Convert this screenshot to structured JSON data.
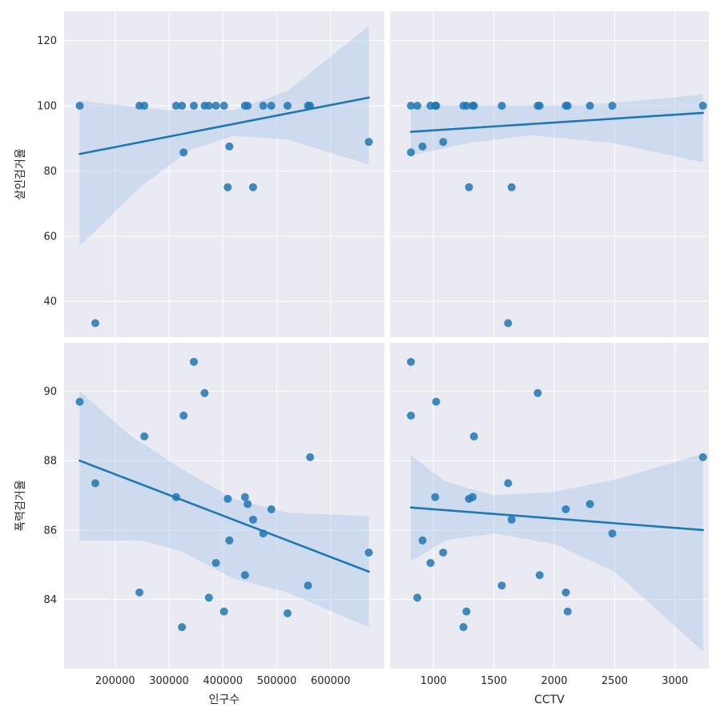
{
  "chart_data": [
    {
      "type": "scatter",
      "row": 0,
      "col": 0,
      "xlabel": "",
      "ylabel": "살인검거율",
      "xlim": [
        105000,
        700000
      ],
      "ylim": [
        29,
        129
      ],
      "yticks": [
        40,
        60,
        80,
        100,
        120
      ],
      "xticks": [],
      "points": [
        [
          134000,
          100
        ],
        [
          163000,
          33.3
        ],
        [
          245000,
          100
        ],
        [
          254000,
          100
        ],
        [
          313000,
          100
        ],
        [
          324000,
          100
        ],
        [
          327000,
          85.7
        ],
        [
          346000,
          100
        ],
        [
          366000,
          100
        ],
        [
          374000,
          100
        ],
        [
          387000,
          100
        ],
        [
          402000,
          100
        ],
        [
          409000,
          75
        ],
        [
          412000,
          87.5
        ],
        [
          441000,
          100
        ],
        [
          446000,
          100
        ],
        [
          456000,
          75
        ],
        [
          475000,
          100
        ],
        [
          490000,
          100
        ],
        [
          520000,
          100
        ],
        [
          558000,
          100
        ],
        [
          562000,
          100
        ],
        [
          671000,
          88.9
        ]
      ],
      "fit": [
        [
          134000,
          85.2
        ],
        [
          671000,
          102.5
        ]
      ],
      "band_upper": [
        [
          134000,
          101.5
        ],
        [
          300000,
          98.6
        ],
        [
          420000,
          98.6
        ],
        [
          520000,
          104.5
        ],
        [
          671000,
          124.5
        ]
      ],
      "band_lower": [
        [
          134000,
          57.0
        ],
        [
          250000,
          75.5
        ],
        [
          340000,
          86.5
        ],
        [
          420000,
          90.8
        ],
        [
          520000,
          89.6
        ],
        [
          671000,
          82.0
        ]
      ]
    },
    {
      "type": "scatter",
      "row": 0,
      "col": 1,
      "xlabel": "",
      "ylabel": "",
      "xlim": [
        640,
        3280
      ],
      "ylim": [
        29,
        129
      ],
      "yticks": [],
      "xticks": [],
      "points": [
        [
          813,
          100
        ],
        [
          813,
          85.7
        ],
        [
          866,
          100
        ],
        [
          909,
          87.5
        ],
        [
          975,
          100
        ],
        [
          1014,
          100
        ],
        [
          1022,
          100
        ],
        [
          1080,
          88.9
        ],
        [
          1248,
          100
        ],
        [
          1273,
          100
        ],
        [
          1294,
          75
        ],
        [
          1324,
          100
        ],
        [
          1335,
          100
        ],
        [
          1566,
          100
        ],
        [
          1618,
          33.3
        ],
        [
          1647,
          75
        ],
        [
          1863,
          100
        ],
        [
          1879,
          100
        ],
        [
          2096,
          100
        ],
        [
          2111,
          100
        ],
        [
          2296,
          100
        ],
        [
          2481,
          100
        ],
        [
          3232,
          100
        ]
      ],
      "fit": [
        [
          813,
          92.0
        ],
        [
          3232,
          97.8
        ]
      ],
      "band_upper": [
        [
          813,
          100.2
        ],
        [
          1500,
          100.2
        ],
        [
          2200,
          100.2
        ],
        [
          2700,
          101.5
        ],
        [
          3232,
          103.5
        ]
      ],
      "band_lower": [
        [
          813,
          84.8
        ],
        [
          1300,
          88.6
        ],
        [
          1800,
          91.0
        ],
        [
          2500,
          88.5
        ],
        [
          3232,
          82.6
        ]
      ]
    },
    {
      "type": "scatter",
      "row": 1,
      "col": 0,
      "xlabel": "인구수",
      "ylabel": "폭력검거율",
      "xlim": [
        105000,
        700000
      ],
      "ylim": [
        82.0,
        91.4
      ],
      "xticks": [
        200000,
        300000,
        400000,
        500000,
        600000
      ],
      "yticks": [
        84,
        86,
        88,
        90
      ],
      "points": [
        [
          134000,
          89.7
        ],
        [
          163000,
          87.35
        ],
        [
          245000,
          84.2
        ],
        [
          254000,
          88.7
        ],
        [
          313000,
          86.95
        ],
        [
          324000,
          83.2
        ],
        [
          327000,
          89.3
        ],
        [
          346000,
          90.85
        ],
        [
          366000,
          89.95
        ],
        [
          374000,
          84.05
        ],
        [
          387000,
          85.05
        ],
        [
          402000,
          83.65
        ],
        [
          409000,
          86.9
        ],
        [
          412000,
          85.7
        ],
        [
          441000,
          86.95
        ],
        [
          441000,
          84.7
        ],
        [
          446000,
          86.75
        ],
        [
          456000,
          86.3
        ],
        [
          475000,
          85.9
        ],
        [
          490000,
          86.6
        ],
        [
          520000,
          83.6
        ],
        [
          558000,
          84.4
        ],
        [
          562000,
          88.1
        ],
        [
          671000,
          85.35
        ]
      ],
      "fit": [
        [
          134000,
          88.0
        ],
        [
          671000,
          84.8
        ]
      ],
      "band_upper": [
        [
          134000,
          90.0
        ],
        [
          230000,
          88.7
        ],
        [
          330000,
          87.7
        ],
        [
          420000,
          86.9
        ],
        [
          520000,
          86.5
        ],
        [
          671000,
          86.4
        ]
      ],
      "band_lower": [
        [
          134000,
          85.7
        ],
        [
          250000,
          85.7
        ],
        [
          320000,
          85.4
        ],
        [
          420000,
          84.6
        ],
        [
          520000,
          84.2
        ],
        [
          671000,
          83.2
        ]
      ]
    },
    {
      "type": "scatter",
      "row": 1,
      "col": 1,
      "xlabel": "CCTV",
      "ylabel": "",
      "xlim": [
        640,
        3280
      ],
      "ylim": [
        82.0,
        91.4
      ],
      "xticks": [
        1000,
        1500,
        2000,
        2500,
        3000
      ],
      "yticks": [],
      "points": [
        [
          813,
          90.85
        ],
        [
          813,
          89.3
        ],
        [
          866,
          84.05
        ],
        [
          909,
          85.7
        ],
        [
          975,
          85.05
        ],
        [
          1014,
          86.95
        ],
        [
          1022,
          89.7
        ],
        [
          1080,
          85.35
        ],
        [
          1248,
          83.2
        ],
        [
          1273,
          83.65
        ],
        [
          1294,
          86.9
        ],
        [
          1324,
          86.95
        ],
        [
          1335,
          88.7
        ],
        [
          1566,
          84.4
        ],
        [
          1618,
          87.35
        ],
        [
          1647,
          86.3
        ],
        [
          1863,
          89.95
        ],
        [
          1879,
          84.7
        ],
        [
          2096,
          84.2
        ],
        [
          2096,
          86.6
        ],
        [
          2111,
          83.65
        ],
        [
          2296,
          86.75
        ],
        [
          2481,
          85.9
        ],
        [
          3232,
          88.1
        ]
      ],
      "fit": [
        [
          813,
          86.65
        ],
        [
          3232,
          86.0
        ]
      ],
      "band_upper": [
        [
          813,
          88.15
        ],
        [
          1100,
          87.4
        ],
        [
          1500,
          87.0
        ],
        [
          2000,
          87.1
        ],
        [
          2500,
          87.45
        ],
        [
          3232,
          88.2
        ]
      ],
      "band_lower": [
        [
          813,
          85.1
        ],
        [
          1100,
          85.7
        ],
        [
          1500,
          85.9
        ],
        [
          2000,
          85.6
        ],
        [
          2500,
          84.8
        ],
        [
          3232,
          82.5
        ]
      ]
    }
  ],
  "colors": {
    "panel_bg": "#eaeaf2",
    "grid": "#ffffff",
    "point": "#1f77b4",
    "line": "#1f77b4",
    "band": "#aec7e8",
    "text": "#262626"
  }
}
